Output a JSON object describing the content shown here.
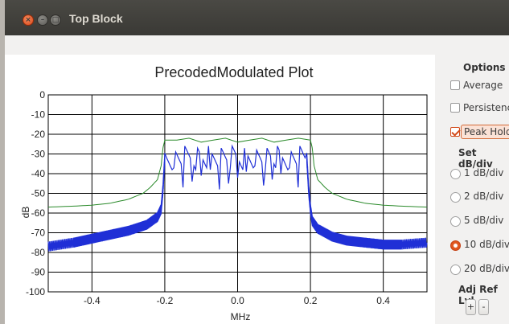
{
  "window": {
    "title": "Top Block"
  },
  "chart_data": {
    "type": "line",
    "title": "PrecodedModulated Plot",
    "xlabel": "MHz",
    "ylabel": "dB",
    "xlim": [
      -0.52,
      0.52
    ],
    "ylim": [
      -100,
      0
    ],
    "grid": true,
    "x_ticks": [
      "-0.4",
      "-0.2",
      "0.0",
      "0.2",
      "0.4"
    ],
    "y_ticks": [
      "0",
      "-10",
      "-20",
      "-30",
      "-40",
      "-50",
      "-60",
      "-70",
      "-80",
      "-90",
      "-100"
    ],
    "series": [
      {
        "color": "#2a8a2a",
        "x": [
          -0.52,
          -0.45,
          -0.4,
          -0.35,
          -0.3,
          -0.26,
          -0.24,
          -0.22,
          -0.21,
          -0.205,
          -0.2,
          0.0,
          0.2,
          0.205,
          0.21,
          0.22,
          0.24,
          0.26,
          0.3,
          0.35,
          0.4,
          0.45,
          0.52
        ],
        "values": [
          -57,
          -56.5,
          -56,
          -55,
          -53,
          -50,
          -47,
          -43,
          -36,
          -27,
          -23,
          -23,
          -23,
          -27,
          -36,
          -43,
          -47,
          -50,
          -53,
          -55,
          -56,
          -56.5,
          -57
        ]
      },
      {
        "color": "#1f2fd6",
        "x": [
          -0.52,
          -0.45,
          -0.4,
          -0.35,
          -0.3,
          -0.25,
          -0.22,
          -0.21,
          -0.205,
          -0.2,
          0.0,
          0.19,
          0.195,
          0.2,
          0.205,
          0.22,
          0.26,
          0.3,
          0.35,
          0.4,
          0.45,
          0.52
        ],
        "values": [
          -77,
          -75,
          -73,
          -71,
          -69,
          -66,
          -62,
          -58,
          -48,
          -32,
          -32,
          -32,
          -48,
          -58,
          -64,
          -68,
          -72,
          -74,
          -75,
          -76,
          -76,
          -75
        ]
      }
    ]
  },
  "options": {
    "title": "Options",
    "checks": [
      {
        "label": "Average",
        "checked": false
      },
      {
        "label": "Persistence",
        "checked": false
      },
      {
        "label": "Peak Hold",
        "checked": true
      }
    ],
    "set_db_title": "Set dB/div",
    "radios": [
      {
        "label": "1 dB/div",
        "checked": false
      },
      {
        "label": "2 dB/div",
        "checked": false
      },
      {
        "label": "5 dB/div",
        "checked": false
      },
      {
        "label": "10 dB/div",
        "checked": true
      },
      {
        "label": "20 dB/div",
        "checked": false
      }
    ],
    "ref_title": "Adj Ref Lvl",
    "plus_label": "+",
    "minus_label": "-"
  }
}
